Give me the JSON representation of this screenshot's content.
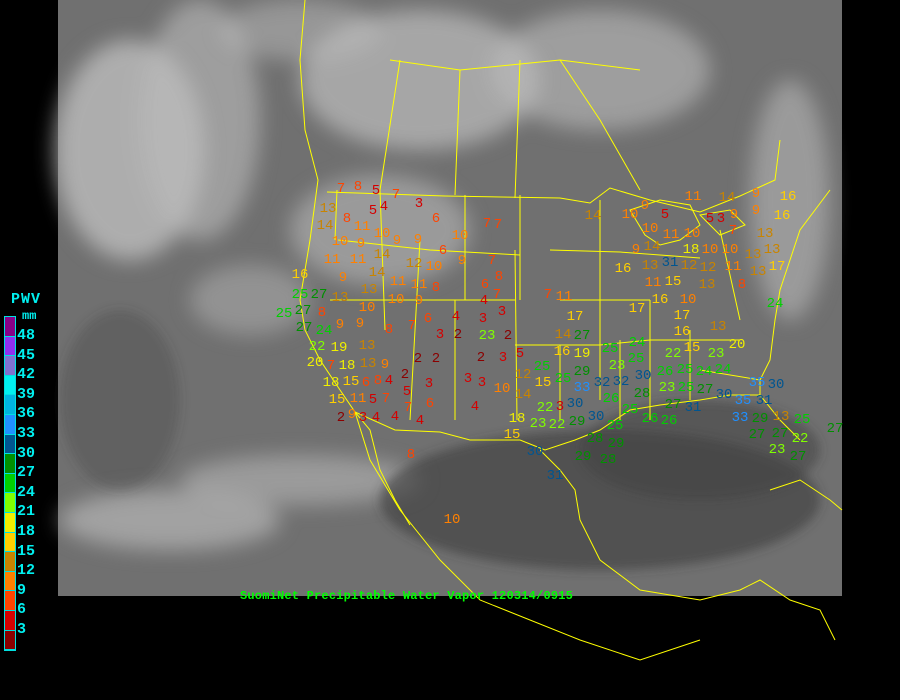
{
  "caption": "SuomiNet Precipitable Water Vapor  120314/0915",
  "legend": {
    "title": "PWV",
    "unit": "mm",
    "labels": [
      "48",
      "45",
      "42",
      "39",
      "36",
      "33",
      "30",
      "27",
      "24",
      "21",
      "18",
      "15",
      "12",
      "9",
      "6",
      "3"
    ],
    "colors_top_to_bottom": [
      "#880088",
      "#9030f0",
      "#8070d0",
      "#00f0f0",
      "#00b4e0",
      "#2090ff",
      "#005590",
      "#009000",
      "#00d000",
      "#80ff00",
      "#f0f000",
      "#ffd000",
      "#c88400",
      "#ff8000",
      "#ff4400",
      "#d40000",
      "#8b0000"
    ],
    "step_mm": 3
  },
  "colors": {
    "borders": "#ffff00",
    "caption": "#00ff00",
    "legend_text": "#00f0f0",
    "background": "#000000"
  },
  "stations": {
    "values": [
      7,
      8,
      5,
      7,
      3,
      13,
      8,
      5,
      4,
      14,
      11,
      6,
      7,
      7,
      10,
      10,
      9,
      9,
      9,
      10,
      6,
      11,
      14,
      14,
      11,
      12,
      10,
      9,
      7,
      16,
      8,
      6,
      7,
      4,
      9,
      13,
      11,
      11,
      8,
      13,
      10,
      10,
      9,
      25,
      27,
      6,
      7,
      8,
      9,
      9,
      4,
      3,
      3,
      3,
      2,
      23,
      2,
      27,
      8,
      24,
      27,
      22,
      25,
      19,
      20,
      7,
      18,
      13,
      13,
      9,
      18,
      2,
      2,
      2,
      3,
      5,
      15,
      4,
      2,
      8,
      11,
      3,
      3,
      3,
      10,
      12,
      15,
      25,
      15,
      6,
      9,
      5,
      3,
      5,
      7,
      7,
      14,
      6,
      4,
      2,
      4,
      4,
      4,
      22,
      18,
      23,
      15,
      8,
      30,
      31,
      10,
      14,
      9,
      9,
      16,
      11,
      9,
      5,
      10,
      14,
      5,
      3,
      9,
      7,
      16,
      10,
      11,
      10,
      18,
      13,
      9,
      14,
      31,
      10,
      13,
      12,
      12,
      10,
      11,
      13,
      13,
      13,
      17,
      16,
      13,
      11,
      15,
      8,
      10,
      7,
      11,
      16,
      17,
      17,
      24,
      17,
      14,
      16,
      13,
      16,
      15,
      20,
      24,
      25,
      23,
      25,
      19,
      27,
      29,
      22,
      23,
      24,
      32,
      33,
      30,
      32,
      25,
      26,
      24,
      30,
      25,
      28,
      26,
      30,
      23,
      25,
      27,
      35,
      25,
      25,
      29,
      30,
      35,
      33,
      31,
      30,
      29,
      31,
      27,
      22,
      28,
      26,
      26,
      13,
      27,
      25,
      27,
      3,
      29,
      23,
      22,
      27,
      28,
      29,
      27
    ]
  }
}
